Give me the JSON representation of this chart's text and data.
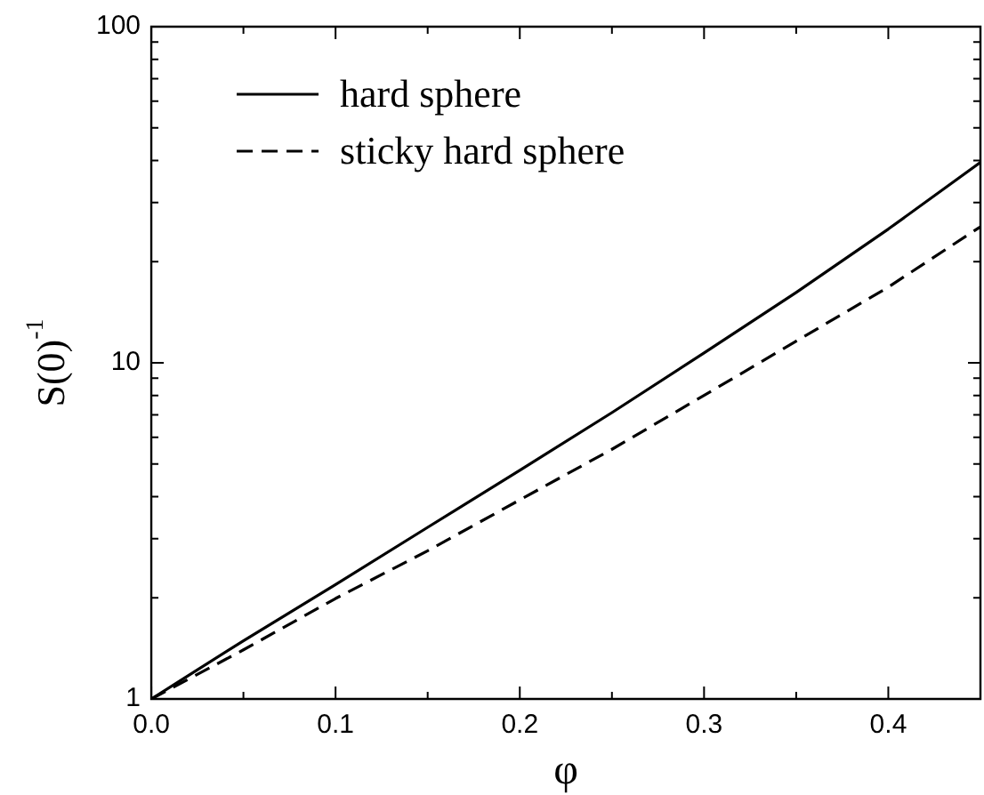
{
  "chart_data": {
    "type": "line",
    "xlabel": "φ",
    "ylabel": "S(0)$^{-1}$",
    "log": "y",
    "grid": false,
    "legend": "top left",
    "marker": "none",
    "x": [
      0,
      0.05,
      0.1,
      0.15,
      0.2,
      0.25,
      0.3,
      0.35,
      0.4,
      0.45
    ],
    "xlim": [
      0,
      0.45
    ],
    "xticks": [
      {
        "value": 0,
        "label": "0.0"
      },
      {
        "value": 0.05,
        "label": null
      },
      0.1,
      {
        "value": 0.15,
        "label": null
      },
      0.2,
      {
        "value": 0.25,
        "label": null
      },
      0.3,
      {
        "value": 0.35,
        "label": null
      },
      0.4
    ],
    "ylim": [
      1,
      100
    ],
    "yticks": [
      1,
      {
        "value": 2,
        "label": null
      },
      {
        "value": 3,
        "label": null
      },
      {
        "value": 4,
        "label": null
      },
      {
        "value": 5,
        "label": null
      },
      {
        "value": 6,
        "label": null
      },
      {
        "value": 7,
        "label": null
      },
      {
        "value": 8,
        "label": null
      },
      {
        "value": 9,
        "label": null
      },
      10,
      {
        "value": 20,
        "label": null
      },
      {
        "value": 30,
        "label": null
      },
      {
        "value": 40,
        "label": null
      },
      {
        "value": 50,
        "label": null
      },
      {
        "value": 60,
        "label": null
      },
      {
        "value": 70,
        "label": null
      },
      {
        "value": 80,
        "label": null
      },
      {
        "value": 90,
        "label": null
      },
      100
    ],
    "series": [
      {
        "name": "hard sphere",
        "color": "#000000",
        "line_style": "solid",
        "values": [
          1,
          1.49,
          2.19,
          3.24,
          4.79,
          7.11,
          10.7,
          16.2,
          25,
          39.5
        ]
      },
      {
        "name": "sticky hard sphere",
        "color": "#000000",
        "line_style": "dashed",
        "values": [
          1,
          1.4,
          1.99,
          2.76,
          3.91,
          5.53,
          8,
          11.6,
          16.8,
          25.4
        ]
      }
    ]
  }
}
